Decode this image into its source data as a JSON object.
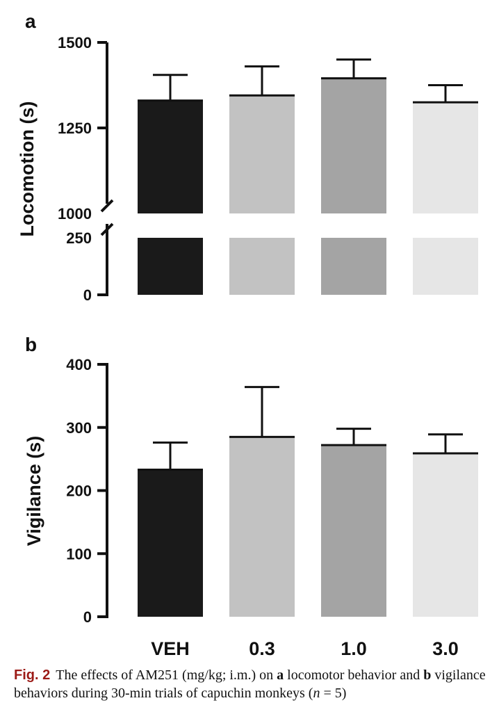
{
  "chart_data": [
    {
      "panel": "a",
      "type": "bar",
      "ylabel": "Locomotion (s)",
      "broken_axis": true,
      "segments": [
        {
          "ylim": [
            1000,
            1500
          ],
          "ticks": [
            1000,
            1250,
            1500
          ]
        },
        {
          "ylim": [
            0,
            250
          ],
          "ticks": [
            0,
            250
          ]
        }
      ],
      "categories": [
        "VEH",
        "0.3",
        "1.0",
        "3.0"
      ],
      "values": [
        1330,
        1345,
        1395,
        1325
      ],
      "error_upper": [
        75,
        85,
        55,
        50
      ],
      "colors": [
        "#1a1a1a",
        "#c2c2c2",
        "#a4a4a4",
        "#e6e6e6"
      ]
    },
    {
      "panel": "b",
      "type": "bar",
      "ylabel": "Vigilance (s)",
      "ylim": [
        0,
        400
      ],
      "ticks": [
        0,
        100,
        200,
        300,
        400
      ],
      "categories": [
        "VEH",
        "0.3",
        "1.0",
        "3.0"
      ],
      "values": [
        233,
        285,
        272,
        259
      ],
      "error_upper": [
        43,
        79,
        26,
        30
      ],
      "colors": [
        "#1a1a1a",
        "#c2c2c2",
        "#a4a4a4",
        "#e6e6e6"
      ]
    }
  ],
  "caption": {
    "label": "Fig. 2",
    "t1": "The effects of AM251 (mg/kg; i.m.) on ",
    "a": "a",
    "t2": " locomotor behavior and ",
    "b": "b",
    "t3": " vigilance behaviors during 30-min trials of capuchin monkeys (",
    "n": "n",
    "t4": " = 5)"
  }
}
